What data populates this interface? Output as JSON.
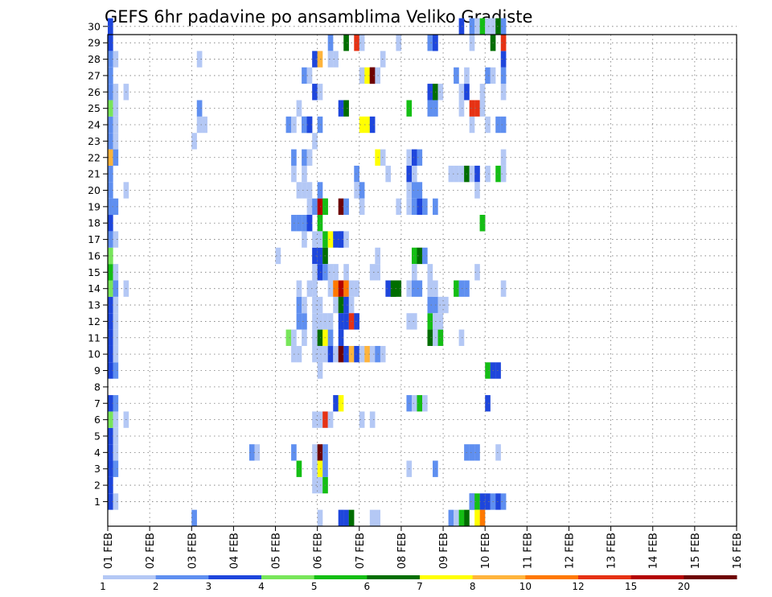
{
  "chart_data": {
    "type": "heatmap",
    "title": "GEFS 6hr padavine po ansamblima Veliko Gradiste",
    "y_ticks": [
      "1",
      "2",
      "3",
      "4",
      "5",
      "6",
      "7",
      "8",
      "9",
      "10",
      "11",
      "12",
      "13",
      "14",
      "15",
      "16",
      "17",
      "18",
      "19",
      "20",
      "21",
      "22",
      "23",
      "24",
      "25",
      "26",
      "27",
      "28",
      "29",
      "30"
    ],
    "x_ticks": [
      "01 FEB",
      "02 FEB",
      "03 FEB",
      "04 FEB",
      "05 FEB",
      "06 FEB",
      "07 FEB",
      "08 FEB",
      "09 FEB",
      "10 FEB",
      "11 FEB",
      "12 FEB",
      "13 FEB",
      "14 FEB",
      "15 FEB",
      "16 FEB"
    ],
    "time_step_hours": 6,
    "grid": true,
    "legend": {
      "position": "bottom",
      "thresholds": [
        "1",
        "2",
        "3",
        "4",
        "5",
        "6",
        "7",
        "8",
        "10",
        "12",
        "15",
        "20"
      ],
      "colors": [
        "#b4c8f5",
        "#5f8ff0",
        "#1e46dc",
        "#78e65a",
        "#14be14",
        "#006e00",
        "#ffff00",
        "#ffb43c",
        "#ff7800",
        "#e63214",
        "#b40000",
        "#6e0000"
      ]
    },
    "cells": [
      [
        0,
        1,
        2
      ],
      [
        0,
        2,
        2
      ],
      [
        0,
        3,
        2
      ],
      [
        0,
        4,
        2
      ],
      [
        0,
        5,
        2
      ],
      [
        0,
        6,
        3
      ],
      [
        0,
        7,
        2
      ],
      [
        0,
        9,
        2
      ],
      [
        0,
        10,
        2
      ],
      [
        0,
        11,
        2
      ],
      [
        0,
        12,
        2
      ],
      [
        0,
        13,
        2
      ],
      [
        0,
        14,
        3
      ],
      [
        0,
        15,
        4
      ],
      [
        0,
        16,
        3
      ],
      [
        0,
        17,
        1
      ],
      [
        0,
        18,
        2
      ],
      [
        0,
        19,
        1
      ],
      [
        0,
        20,
        1
      ],
      [
        0,
        21,
        1
      ],
      [
        0,
        22,
        7
      ],
      [
        0,
        23,
        1
      ],
      [
        0,
        24,
        1
      ],
      [
        0,
        25,
        3
      ],
      [
        0,
        26,
        1
      ],
      [
        0,
        27,
        1
      ],
      [
        0,
        28,
        1
      ],
      [
        0,
        29,
        2
      ],
      [
        0,
        30,
        2
      ],
      [
        1,
        1,
        -1
      ],
      [
        1,
        3,
        1
      ],
      [
        1,
        4,
        -1
      ],
      [
        1,
        5,
        -1
      ],
      [
        1,
        6,
        -1
      ],
      [
        1,
        7,
        1
      ],
      [
        1,
        9,
        1
      ],
      [
        1,
        10,
        -1
      ],
      [
        1,
        11,
        -1
      ],
      [
        1,
        12,
        -1
      ],
      [
        1,
        13,
        -1
      ],
      [
        1,
        14,
        1
      ],
      [
        1,
        15,
        -1
      ],
      [
        1,
        17,
        -1
      ],
      [
        1,
        19,
        1
      ],
      [
        1,
        22,
        1
      ],
      [
        1,
        23,
        -1
      ],
      [
        1,
        24,
        -1
      ],
      [
        1,
        25,
        -1
      ],
      [
        1,
        26,
        -1
      ],
      [
        1,
        28,
        -1
      ],
      [
        3,
        6,
        -1
      ],
      [
        3,
        20,
        -1
      ],
      [
        3,
        26,
        -1
      ],
      [
        3,
        14,
        -1
      ],
      [
        16,
        23,
        -1
      ],
      [
        16,
        0,
        1
      ],
      [
        17,
        24,
        -1
      ],
      [
        17,
        25,
        1
      ],
      [
        18,
        24,
        -1
      ],
      [
        17,
        28,
        -1
      ],
      [
        27,
        4,
        1
      ],
      [
        28,
        4,
        -1
      ],
      [
        32,
        16,
        -1
      ],
      [
        34,
        11,
        3
      ],
      [
        35,
        11,
        -1
      ],
      [
        34,
        24,
        1
      ],
      [
        35,
        24,
        -1
      ],
      [
        35,
        10,
        -1
      ],
      [
        35,
        21,
        -1
      ],
      [
        35,
        18,
        1
      ],
      [
        36,
        18,
        1
      ],
      [
        35,
        4,
        1
      ],
      [
        35,
        22,
        1
      ],
      [
        36,
        3,
        4
      ],
      [
        36,
        10,
        -1
      ],
      [
        36,
        12,
        1
      ],
      [
        36,
        13,
        1
      ],
      [
        36,
        14,
        -1
      ],
      [
        36,
        20,
        -1
      ],
      [
        36,
        25,
        -1
      ],
      [
        37,
        24,
        1
      ],
      [
        37,
        17,
        -1
      ],
      [
        37,
        27,
        1
      ],
      [
        37,
        11,
        -1
      ],
      [
        37,
        12,
        1
      ],
      [
        37,
        13,
        -1
      ],
      [
        37,
        18,
        1
      ],
      [
        37,
        20,
        -1
      ],
      [
        37,
        21,
        -1
      ],
      [
        37,
        22,
        1
      ],
      [
        37,
        24,
        1
      ],
      [
        38,
        18,
        2
      ],
      [
        38,
        22,
        -1
      ],
      [
        38,
        19,
        -1
      ],
      [
        38,
        24,
        2
      ],
      [
        38,
        24,
        2
      ],
      [
        38,
        14,
        -1
      ],
      [
        38,
        18,
        2
      ],
      [
        38,
        20,
        -1
      ],
      [
        38,
        22,
        -1
      ],
      [
        38,
        27,
        -1
      ],
      [
        39,
        16,
        2
      ],
      [
        39,
        19,
        1
      ],
      [
        39,
        17,
        -1
      ],
      [
        39,
        15,
        -1
      ],
      [
        39,
        10,
        -1
      ],
      [
        39,
        12,
        -1
      ],
      [
        39,
        11,
        -1
      ],
      [
        39,
        28,
        2
      ],
      [
        39,
        2,
        -1
      ],
      [
        39,
        3,
        -1
      ],
      [
        39,
        4,
        -1
      ],
      [
        39,
        6,
        -1
      ],
      [
        39,
        14,
        -1
      ],
      [
        39,
        13,
        -1
      ],
      [
        39,
        26,
        2
      ],
      [
        39,
        23,
        -1
      ],
      [
        40,
        18,
        4
      ],
      [
        40,
        16,
        2
      ],
      [
        40,
        19,
        10
      ],
      [
        40,
        20,
        1
      ],
      [
        40,
        11,
        5
      ],
      [
        40,
        10,
        -1
      ],
      [
        40,
        12,
        -1
      ],
      [
        40,
        13,
        -1
      ],
      [
        40,
        15,
        2
      ],
      [
        40,
        17,
        -1
      ],
      [
        40,
        28,
        7
      ],
      [
        40,
        26,
        -1
      ],
      [
        40,
        24,
        1
      ],
      [
        40,
        4,
        12
      ],
      [
        40,
        3,
        6
      ],
      [
        40,
        2,
        -1
      ],
      [
        40,
        6,
        -1
      ],
      [
        40,
        9,
        -1
      ],
      [
        40,
        0,
        0
      ],
      [
        41,
        17,
        4
      ],
      [
        41,
        16,
        5
      ],
      [
        41,
        19,
        4
      ],
      [
        41,
        15,
        1
      ],
      [
        41,
        11,
        6
      ],
      [
        41,
        12,
        -1
      ],
      [
        41,
        10,
        -1
      ],
      [
        41,
        4,
        1
      ],
      [
        41,
        3,
        1
      ],
      [
        41,
        2,
        4
      ],
      [
        41,
        6,
        9
      ],
      [
        41,
        19,
        4
      ],
      [
        42,
        17,
        6
      ],
      [
        42,
        29,
        1
      ],
      [
        42,
        28,
        -1
      ],
      [
        42,
        15,
        -1
      ],
      [
        42,
        14,
        -1
      ],
      [
        42,
        12,
        -1
      ],
      [
        42,
        11,
        1
      ],
      [
        42,
        10,
        2
      ],
      [
        42,
        6,
        -1
      ],
      [
        43,
        17,
        2
      ],
      [
        43,
        15,
        -1
      ],
      [
        43,
        13,
        -1
      ],
      [
        43,
        14,
        8
      ],
      [
        43,
        10,
        -1
      ],
      [
        43,
        7,
        2
      ],
      [
        43,
        28,
        -1
      ],
      [
        44,
        17,
        2
      ],
      [
        44,
        14,
        10
      ],
      [
        44,
        13,
        5
      ],
      [
        44,
        12,
        2
      ],
      [
        44,
        11,
        2
      ],
      [
        44,
        10,
        12
      ],
      [
        44,
        7,
        6
      ],
      [
        44,
        19,
        12
      ],
      [
        44,
        25,
        2
      ],
      [
        44,
        0,
        -1
      ],
      [
        44,
        17,
        2
      ],
      [
        44,
        0,
        2
      ],
      [
        45,
        17,
        -1
      ],
      [
        45,
        15,
        -1
      ],
      [
        45,
        14,
        8
      ],
      [
        45,
        13,
        2
      ],
      [
        45,
        12,
        2
      ],
      [
        45,
        10,
        2
      ],
      [
        45,
        25,
        5
      ],
      [
        45,
        29,
        5
      ],
      [
        45,
        19,
        1
      ],
      [
        45,
        0,
        2
      ],
      [
        46,
        14,
        -1
      ],
      [
        46,
        13,
        -1
      ],
      [
        46,
        12,
        9
      ],
      [
        46,
        10,
        7
      ],
      [
        46,
        0,
        5
      ],
      [
        47,
        14,
        -1
      ],
      [
        47,
        12,
        2
      ],
      [
        47,
        10,
        2
      ],
      [
        47,
        21,
        1
      ],
      [
        47,
        20,
        -1
      ],
      [
        47,
        29,
        9
      ],
      [
        48,
        24,
        6
      ],
      [
        48,
        10,
        -1
      ],
      [
        48,
        29,
        -1
      ],
      [
        48,
        6,
        -1
      ],
      [
        48,
        27,
        -1
      ],
      [
        48,
        20,
        1
      ],
      [
        48,
        19,
        -1
      ],
      [
        49,
        24,
        6
      ],
      [
        49,
        10,
        7
      ],
      [
        49,
        27,
        6
      ],
      [
        50,
        24,
        2
      ],
      [
        50,
        10,
        -1
      ],
      [
        50,
        27,
        12
      ],
      [
        50,
        27,
        12
      ],
      [
        50,
        15,
        -1
      ],
      [
        50,
        6,
        -1
      ],
      [
        50,
        0,
        -1
      ],
      [
        51,
        10,
        1
      ],
      [
        51,
        27,
        -1
      ],
      [
        51,
        0,
        -1
      ],
      [
        51,
        22,
        6
      ],
      [
        51,
        15,
        -1
      ],
      [
        51,
        16,
        -1
      ],
      [
        52,
        10,
        -1
      ],
      [
        52,
        22,
        -1
      ],
      [
        52,
        28,
        -1
      ],
      [
        53,
        14,
        2
      ],
      [
        53,
        21,
        -1
      ],
      [
        54,
        14,
        5
      ],
      [
        54,
        14,
        5
      ],
      [
        55,
        14,
        5
      ],
      [
        55,
        19,
        -1
      ],
      [
        55,
        29,
        -1
      ],
      [
        57,
        12,
        -1
      ],
      [
        57,
        14,
        -1
      ],
      [
        57,
        22,
        -1
      ],
      [
        57,
        20,
        -1
      ],
      [
        57,
        19,
        -1
      ],
      [
        57,
        21,
        2
      ],
      [
        57,
        7,
        1
      ],
      [
        57,
        25,
        4
      ],
      [
        57,
        3,
        -1
      ],
      [
        58,
        12,
        -1
      ],
      [
        58,
        14,
        1
      ],
      [
        58,
        21,
        -1
      ],
      [
        58,
        22,
        2
      ],
      [
        58,
        20,
        1
      ],
      [
        58,
        19,
        1
      ],
      [
        58,
        7,
        -1
      ],
      [
        58,
        16,
        4
      ],
      [
        58,
        15,
        -1
      ],
      [
        59,
        20,
        1
      ],
      [
        59,
        19,
        2
      ],
      [
        59,
        16,
        5
      ],
      [
        59,
        22,
        1
      ],
      [
        59,
        14,
        1
      ],
      [
        59,
        7,
        4
      ],
      [
        60,
        16,
        1
      ],
      [
        60,
        19,
        1
      ],
      [
        60,
        7,
        -1
      ],
      [
        61,
        29,
        1
      ],
      [
        61,
        26,
        2
      ],
      [
        61,
        25,
        1
      ],
      [
        61,
        12,
        4
      ],
      [
        61,
        11,
        5
      ],
      [
        61,
        14,
        -1
      ],
      [
        61,
        13,
        1
      ],
      [
        61,
        14,
        -1
      ],
      [
        61,
        15,
        -1
      ],
      [
        62,
        29,
        1
      ],
      [
        62,
        26,
        5
      ],
      [
        62,
        25,
        1
      ],
      [
        62,
        19,
        1
      ],
      [
        62,
        13,
        1
      ],
      [
        62,
        12,
        -1
      ],
      [
        62,
        11,
        2
      ],
      [
        62,
        14,
        -1
      ],
      [
        62,
        29,
        2
      ],
      [
        62,
        3,
        1
      ],
      [
        62,
        11,
        -1
      ],
      [
        63,
        26,
        -1
      ],
      [
        63,
        11,
        4
      ],
      [
        63,
        13,
        -1
      ],
      [
        63,
        12,
        -1
      ],
      [
        64,
        13,
        -1
      ],
      [
        65,
        21,
        -1
      ],
      [
        65,
        0,
        1
      ],
      [
        66,
        21,
        -1
      ],
      [
        66,
        0,
        -1
      ],
      [
        66,
        27,
        1
      ],
      [
        66,
        14,
        4
      ],
      [
        67,
        21,
        -1
      ],
      [
        67,
        14,
        1
      ],
      [
        67,
        26,
        -1
      ],
      [
        67,
        25,
        -1
      ],
      [
        67,
        30,
        2
      ],
      [
        67,
        0,
        4
      ],
      [
        67,
        11,
        -1
      ],
      [
        68,
        21,
        5
      ],
      [
        68,
        4,
        1
      ],
      [
        68,
        26,
        2
      ],
      [
        68,
        27,
        -1
      ],
      [
        68,
        14,
        1
      ],
      [
        68,
        0,
        5
      ],
      [
        69,
        30,
        1
      ],
      [
        69,
        1,
        2
      ],
      [
        69,
        24,
        -1
      ],
      [
        69,
        21,
        -1
      ],
      [
        69,
        25,
        9
      ],
      [
        69,
        1,
        1
      ],
      [
        69,
        4,
        1
      ],
      [
        69,
        29,
        -1
      ],
      [
        70,
        1,
        4
      ],
      [
        70,
        21,
        2
      ],
      [
        70,
        25,
        9
      ],
      [
        70,
        4,
        1
      ],
      [
        70,
        0,
        6
      ],
      [
        70,
        30,
        -1
      ],
      [
        70,
        15,
        -1
      ],
      [
        70,
        20,
        -1
      ],
      [
        71,
        1,
        2
      ],
      [
        71,
        18,
        4
      ],
      [
        71,
        26,
        -1
      ],
      [
        71,
        30,
        4
      ],
      [
        71,
        0,
        8
      ],
      [
        71,
        25,
        -1
      ],
      [
        71,
        18,
        4
      ],
      [
        72,
        1,
        2
      ],
      [
        72,
        9,
        4
      ],
      [
        72,
        7,
        2
      ],
      [
        72,
        21,
        -1
      ],
      [
        72,
        30,
        -1
      ],
      [
        72,
        24,
        -1
      ],
      [
        72,
        27,
        1
      ],
      [
        73,
        1,
        1
      ],
      [
        73,
        9,
        2
      ],
      [
        73,
        29,
        5
      ],
      [
        73,
        30,
        -1
      ],
      [
        73,
        27,
        -1
      ],
      [
        74,
        1,
        2
      ],
      [
        74,
        21,
        4
      ],
      [
        74,
        9,
        2
      ],
      [
        74,
        24,
        1
      ],
      [
        74,
        4,
        -1
      ],
      [
        74,
        30,
        5
      ],
      [
        75,
        1,
        1
      ],
      [
        75,
        24,
        1
      ],
      [
        75,
        26,
        -1
      ],
      [
        75,
        22,
        -1
      ],
      [
        75,
        21,
        -1
      ],
      [
        75,
        14,
        -1
      ],
      [
        75,
        27,
        1
      ],
      [
        75,
        28,
        2
      ],
      [
        75,
        29,
        9
      ],
      [
        75,
        30,
        1
      ]
    ]
  }
}
